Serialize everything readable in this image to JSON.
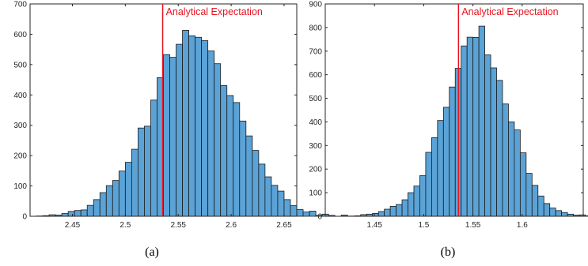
{
  "colors": {
    "bar": "#5ba3d6",
    "bar_edge": "#1a1a1a",
    "expectation_line": "#e8141f",
    "axis": "#262626"
  },
  "chart_data": [
    {
      "type": "bar",
      "caption": "(a)",
      "annotation": "Analytical Expectation",
      "expectation_x": 2.5353,
      "xlim": [
        2.41,
        2.662
      ],
      "ylim": [
        0,
        700
      ],
      "xticks": [
        2.45,
        2.5,
        2.55,
        2.6,
        2.65
      ],
      "xtick_labels": [
        "2.45",
        "2.5",
        "2.55",
        "2.6",
        "2.65"
      ],
      "yticks": [
        0,
        100,
        200,
        300,
        400,
        500,
        600,
        700
      ],
      "ytick_labels": [
        "0",
        "100",
        "200",
        "300",
        "400",
        "500",
        "600",
        "700"
      ],
      "bin_start": 2.416,
      "bin_width": 0.006,
      "values": [
        1,
        2,
        5,
        4,
        9,
        16,
        19,
        21,
        36,
        55,
        78,
        101,
        118,
        149,
        178,
        221,
        291,
        297,
        383,
        457,
        533,
        524,
        567,
        613,
        595,
        590,
        579,
        545,
        503,
        431,
        398,
        375,
        314,
        265,
        217,
        172,
        130,
        102,
        83,
        55,
        35,
        22,
        14,
        17,
        3,
        7,
        3,
        0,
        4
      ]
    },
    {
      "type": "bar",
      "caption": "(b)",
      "annotation": "Analytical Expectation",
      "expectation_x": 1.5353,
      "xlim": [
        1.4,
        1.662
      ],
      "ylim": [
        0,
        900
      ],
      "xticks": [
        1.45,
        1.5,
        1.55,
        1.6
      ],
      "xtick_labels": [
        "1.45",
        "1.5",
        "1.55",
        "1.6"
      ],
      "yticks": [
        0,
        100,
        200,
        300,
        400,
        500,
        600,
        700,
        800,
        900
      ],
      "ytick_labels": [
        "0",
        "100",
        "200",
        "300",
        "400",
        "500",
        "600",
        "700",
        "800",
        "900"
      ],
      "bin_start": 1.424,
      "bin_width": 0.006,
      "values": [
        1,
        2,
        7,
        9,
        12,
        20,
        30,
        42,
        50,
        70,
        100,
        128,
        172,
        271,
        333,
        406,
        462,
        548,
        627,
        722,
        759,
        758,
        806,
        684,
        629,
        576,
        476,
        400,
        366,
        269,
        182,
        131,
        86,
        54,
        35,
        24,
        16,
        9,
        5,
        6,
        2,
        1
      ]
    }
  ]
}
